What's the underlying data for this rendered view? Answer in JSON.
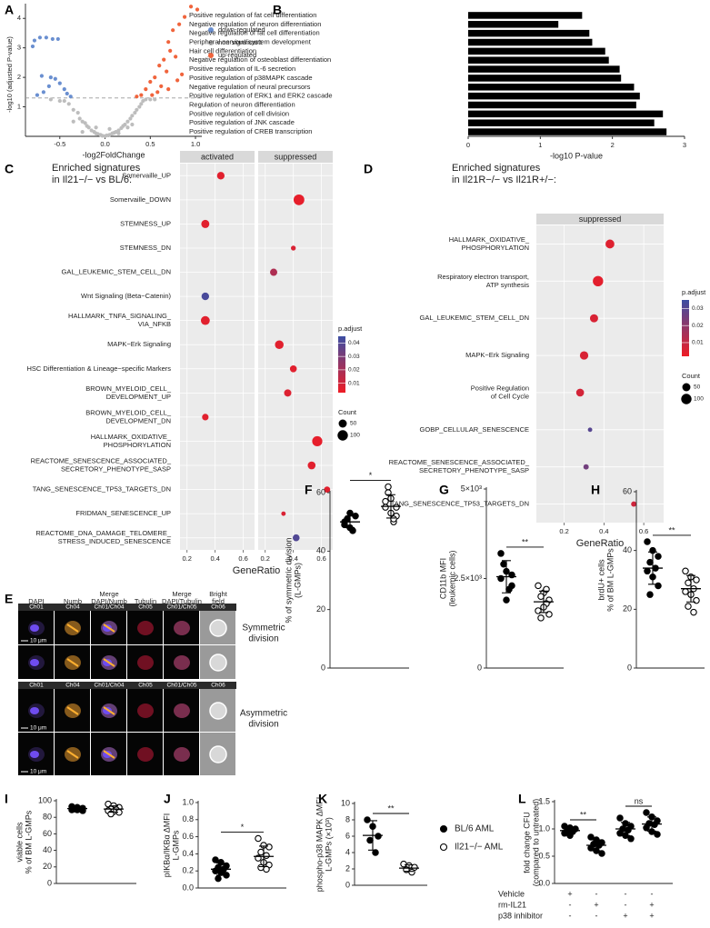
{
  "panel_e": {
    "label": "E",
    "headers": [
      [
        "DAPI"
      ],
      [
        "Numb"
      ],
      [
        "Merge",
        "DAPI/Numb"
      ],
      [
        "Tubulin"
      ],
      [
        "Merge",
        "DAPI/Tubulin"
      ],
      [
        "Bright",
        "field"
      ]
    ],
    "channels_top": [
      "Ch01",
      "Ch04",
      "Ch01/Ch04",
      "Ch05",
      "Ch01/Ch05",
      "Ch06"
    ],
    "channels_bottom": [
      "Ch01",
      "Ch04",
      "Ch01/Ch04",
      "Ch05",
      "Ch01/Ch05",
      "Ch06"
    ],
    "row_labels": [
      [
        "Symmetric",
        "division"
      ],
      [
        "Asymmetric",
        "division"
      ]
    ],
    "scale_bar": "10 μm"
  },
  "chart_data": [
    {
      "type": "scatter",
      "label": "A",
      "xlabel": "-log2FoldChange",
      "ylabel": "-log10 (adjusted P-value)",
      "xlim": [
        -0.88,
        1.07
      ],
      "ylim": [
        0,
        4.5
      ],
      "xticks": [
        -0.5,
        {
          "value": 0,
          "label": "0.0"
        },
        0.5,
        {
          "value": 1,
          "label": "1.0"
        }
      ],
      "yticks": [
        1,
        2,
        3,
        4
      ],
      "hline": 1.3,
      "series": [
        {
          "name": "down-regulated",
          "color": "#6a8fd0",
          "x": [
            -0.78,
            -0.72,
            -0.65,
            -0.58,
            -0.52,
            -0.8,
            -0.7,
            -0.6,
            -0.55,
            -0.5,
            -0.45,
            -0.62,
            -0.68,
            -0.42,
            -0.75,
            -0.38
          ],
          "values": [
            3.25,
            3.35,
            3.35,
            3.3,
            3.3,
            3.05,
            2.05,
            2.0,
            1.95,
            1.8,
            1.6,
            1.7,
            1.5,
            1.45,
            1.4,
            1.35
          ]
        },
        {
          "name": "non significant",
          "color": "#bdbdbd",
          "x": [
            -0.45,
            -0.4,
            -0.35,
            -0.3,
            -0.28,
            -0.25,
            -0.22,
            -0.2,
            -0.18,
            -0.15,
            -0.12,
            -0.1,
            -0.08,
            -0.05,
            -0.03,
            0,
            0.02,
            0.05,
            0.08,
            0.1,
            0.12,
            0.15,
            0.18,
            0.2,
            0.22,
            0.25,
            0.28,
            0.3,
            0.33,
            0.35,
            0.38,
            0.4,
            0.42,
            0.45,
            -0.6,
            -0.5,
            0.5,
            0.55,
            0.3,
            -0.35,
            0.15,
            -0.1,
            0.05,
            0.25,
            -0.25
          ],
          "values": [
            1.2,
            1.1,
            0.9,
            0.8,
            0.6,
            0.5,
            0.45,
            0.35,
            0.3,
            0.2,
            0.15,
            0.1,
            0.08,
            0.05,
            0.02,
            0.01,
            0.03,
            0.05,
            0.1,
            0.12,
            0.15,
            0.2,
            0.28,
            0.35,
            0.4,
            0.5,
            0.6,
            0.7,
            0.8,
            0.9,
            1.0,
            1.1,
            1.2,
            1.25,
            1.25,
            1.2,
            1.25,
            1.25,
            0.4,
            0.5,
            0.1,
            0.3,
            0.25,
            0.3,
            0.15
          ]
        },
        {
          "name": "up-regulated",
          "color": "#f0643c",
          "x": [
            0.95,
            1.02,
            0.88,
            0.82,
            0.75,
            0.7,
            0.72,
            0.78,
            0.65,
            0.6,
            0.68,
            0.55,
            0.5,
            0.62,
            0.45,
            0.58,
            0.4,
            0.7,
            0.8,
            0.85,
            0.52,
            0.35
          ],
          "values": [
            4.4,
            4.3,
            4.05,
            3.8,
            3.6,
            3.2,
            2.9,
            2.7,
            2.6,
            2.4,
            2.2,
            2.0,
            1.85,
            1.7,
            1.6,
            1.5,
            1.4,
            1.6,
            1.9,
            2.1,
            1.4,
            1.35
          ]
        }
      ]
    },
    {
      "type": "barh",
      "label": "B",
      "xlabel": "-log10 P-value",
      "color": "#000000",
      "xlim": [
        0,
        3
      ],
      "xticks": [
        0,
        1,
        2,
        3
      ],
      "categories": [
        "Positive regulation of fat cell differentiation",
        "Negative regulation of neuron differentiation",
        "Negative regulation of fat cell differentiation",
        "Peripheral nervous system development",
        "Hair cell differentiation",
        "Negative regulation of osteoblast differentiation",
        "Positive regulation of IL-6 secretion",
        "Positive regulation of p38MAPK cascade",
        "Negative regulation of neural precursors",
        "Positive regulation of ERK1 and ERK2 cascade",
        "Regulation of neuron differentiation",
        "Positive regulation of cell division",
        "Positive regulation of JNK cascade",
        "Positive regulation of CREB transcription"
      ],
      "values": [
        1.58,
        1.25,
        1.68,
        1.72,
        1.9,
        1.95,
        2.1,
        2.12,
        2.3,
        2.38,
        2.33,
        2.7,
        2.58,
        2.75
      ]
    },
    {
      "type": "dotplot",
      "label": "C",
      "title": [
        "Enriched signatures",
        "in Il21−/− vs BL/6:"
      ],
      "facets": [
        "activated",
        "suppressed"
      ],
      "categories": [
        [
          "Somervaille_UP"
        ],
        [
          "Somervaille_DOWN"
        ],
        [
          "STEMNESS_UP"
        ],
        [
          "STEMNESS_DN"
        ],
        [
          "GAL_LEUKEMIC_STEM_CELL_DN"
        ],
        [
          "Wnt Signaling (Beta−Catenin)"
        ],
        [
          "HALLMARK_TNFA_SIGNALING_",
          "VIA_NFKB"
        ],
        [
          "MAPK−Erk Signaling"
        ],
        [
          "HSC Differentiation & Lineage−specific Markers"
        ],
        [
          "BROWN_MYELOID_CELL_",
          "DEVELOPMENT_UP"
        ],
        [
          "BROWN_MYELOID_CELL_",
          "DEVELOPMENT_DN"
        ],
        [
          "HALLMARK_OXIDATIVE_",
          "PHOSPHORYLATION"
        ],
        [
          "REACTOME_SENESCENCE_ASSOCIATED_",
          "SECRETORY_PHENOTYPE_SASP"
        ],
        [
          "TANG_SENESCENCE_TP53_TARGETS_DN"
        ],
        [
          "FRIDMAN_SENESCENCE_UP"
        ],
        [
          "REACTOME_DNA_DAMAGE_TELOMERE_",
          "STRESS_INDUCED_SENESCENCE"
        ]
      ],
      "facet": [
        0,
        1,
        0,
        1,
        1,
        0,
        0,
        1,
        1,
        1,
        0,
        1,
        1,
        1,
        1,
        1
      ],
      "values": [
        0.44,
        0.44,
        0.33,
        0.4,
        0.26,
        0.33,
        0.33,
        0.3,
        0.4,
        0.36,
        0.33,
        0.57,
        0.53,
        0.64,
        0.33,
        0.42
      ],
      "p_adjust": [
        0.006,
        0.005,
        0.006,
        0.008,
        0.018,
        0.042,
        0.006,
        0.006,
        0.006,
        0.007,
        0.006,
        0.005,
        0.006,
        0.006,
        0.008,
        0.04
      ],
      "count": [
        40,
        110,
        50,
        8,
        35,
        40,
        65,
        60,
        30,
        35,
        25,
        95,
        45,
        20,
        5,
        30
      ],
      "xlim": [
        0.15,
        0.68
      ],
      "xticks": [
        0.2,
        0.4,
        0.6
      ],
      "xlabel": "GeneRatio",
      "color_title": "p.adjust",
      "color_lim": [
        0.003,
        0.045
      ],
      "color_ticks": [
        0.01,
        0.02,
        0.03,
        0.04
      ],
      "color_low": "#ee1c25",
      "color_high": "#3c4ea3",
      "size_title": "Count",
      "size_ticks": [
        50,
        100
      ]
    },
    {
      "type": "dotplot",
      "label": "D",
      "title": [
        "Enriched signatures",
        "in Il21R−/− vs Il21R+/−:"
      ],
      "facets": [
        "suppressed"
      ],
      "categories": [
        [
          "HALLMARK_OXIDATIVE_",
          "PHOSPHORYLATION"
        ],
        [
          "Respiratory electron transport,",
          "ATP synthesis"
        ],
        [
          "GAL_LEUKEMIC_STEM_CELL_DN"
        ],
        [
          "MAPK−Erk Signaling"
        ],
        [
          "Positive Regulation",
          "of Cell Cycle"
        ],
        [
          "GOBP_CELLULAR_SENESCENCE"
        ],
        [
          "REACTOME_SENESCENCE_ASSOCIATED_",
          "SECRETORY_PHENOTYPE_SASP"
        ],
        [
          "TANG_SENESCENCE_TP53_TARGETS_DN"
        ]
      ],
      "facet": [
        0,
        0,
        0,
        0,
        0,
        0,
        0,
        0
      ],
      "values": [
        0.43,
        0.37,
        0.35,
        0.3,
        0.28,
        0.33,
        0.31,
        0.55
      ],
      "p_adjust": [
        0.005,
        0.004,
        0.006,
        0.006,
        0.007,
        0.03,
        0.025,
        0.008
      ],
      "count": [
        65,
        100,
        50,
        55,
        45,
        5,
        12,
        12
      ],
      "xlim": [
        0.06,
        0.7
      ],
      "xticks": [
        0.2,
        0.4,
        0.6
      ],
      "xlabel": "GeneRatio",
      "color_title": "p.adjust",
      "color_lim": [
        0.002,
        0.035
      ],
      "color_ticks": [
        0.01,
        0.02,
        0.03
      ],
      "color_low": "#ee1c25",
      "color_high": "#3c4ea3",
      "size_title": "Count",
      "size_ticks": [
        50,
        100
      ]
    },
    {
      "type": "strip",
      "label": "F",
      "ylabel": [
        "% of symmetric division",
        "(L-GMPs)"
      ],
      "ylim": [
        0,
        60
      ],
      "yticks": [
        0,
        20,
        40,
        60
      ],
      "series": [
        {
          "fill": "filled",
          "values": [
            50,
            48,
            52,
            51,
            47,
            49,
            53
          ],
          "mean": 50,
          "sd": 2
        },
        {
          "fill": "open",
          "values": [
            55,
            58,
            52,
            60,
            50,
            57,
            53,
            55,
            62,
            51
          ],
          "mean": 55.3,
          "sd": 4
        }
      ],
      "significance": [
        {
          "groups": [
            0,
            1
          ],
          "label": "*"
        }
      ]
    },
    {
      "type": "strip",
      "label": "G",
      "ylabel": [
        "CD11b MFI",
        "(leukemic cells)"
      ],
      "ylim": [
        0,
        5000
      ],
      "yticks": [
        0,
        {
          "value": 2500,
          "label": "2.5×10³"
        },
        {
          "value": 5000,
          "label": "5×10³"
        }
      ],
      "series": [
        {
          "fill": "filled",
          "values": [
            3200,
            2700,
            2600,
            2900,
            2200,
            2500,
            1900,
            2300
          ],
          "mean": 2550,
          "sd": 450
        },
        {
          "fill": "open",
          "values": [
            2300,
            2100,
            1900,
            2000,
            1800,
            1600,
            1700,
            1500,
            1400,
            2200
          ],
          "mean": 1850,
          "sd": 300
        }
      ],
      "significance": [
        {
          "groups": [
            0,
            1
          ],
          "label": "**"
        }
      ]
    },
    {
      "type": "strip",
      "label": "H",
      "ylabel": [
        "brdU+ cells",
        "% of BM L-GMPs"
      ],
      "ylim": [
        0,
        60
      ],
      "yticks": [
        0,
        20,
        40,
        60
      ],
      "series": [
        {
          "fill": "filled",
          "values": [
            43,
            40,
            38,
            36,
            34,
            33,
            31,
            28,
            25
          ],
          "mean": 34,
          "sd": 5.5
        },
        {
          "fill": "open",
          "values": [
            33,
            31,
            30,
            29,
            27,
            26,
            25,
            23,
            21,
            19
          ],
          "mean": 27,
          "sd": 4.5
        }
      ],
      "significance": [
        {
          "groups": [
            0,
            1
          ],
          "label": "**"
        }
      ]
    },
    {
      "type": "strip",
      "label": "I",
      "ylabel": [
        "viable cells",
        "% of BM L-GMPs"
      ],
      "ylim": [
        0,
        100
      ],
      "yticks": [
        0,
        20,
        40,
        60,
        80,
        100
      ],
      "series": [
        {
          "fill": "filled",
          "values": [
            93,
            92,
            91,
            90,
            90,
            89,
            89,
            88,
            91
          ],
          "mean": 90.5,
          "sd": 1.6
        },
        {
          "fill": "open",
          "values": [
            96,
            94,
            92,
            90,
            89,
            88,
            87,
            86,
            84
          ],
          "mean": 90,
          "sd": 3.8
        }
      ]
    },
    {
      "type": "strip",
      "label": "J",
      "ylabel": [
        "pIKBα/IKBα ΔMFI",
        "L-GMPs"
      ],
      "ylim": [
        0,
        1
      ],
      "yticks": [
        {
          "value": 0,
          "label": "0.0"
        },
        0.2,
        0.4,
        0.6,
        0.8,
        {
          "value": 1,
          "label": "1.0"
        }
      ],
      "series": [
        {
          "fill": "filled",
          "values": [
            0.33,
            0.3,
            0.26,
            0.24,
            0.22,
            0.2,
            0.18,
            0.15,
            0.11
          ],
          "mean": 0.22,
          "sd": 0.07
        },
        {
          "fill": "open",
          "values": [
            0.58,
            0.5,
            0.48,
            0.42,
            0.38,
            0.35,
            0.3,
            0.27,
            0.24,
            0.22
          ],
          "mean": 0.37,
          "sd": 0.12
        }
      ],
      "significance": [
        {
          "groups": [
            0,
            1
          ],
          "label": "*"
        }
      ]
    },
    {
      "type": "strip",
      "label": "K",
      "ylabel": [
        "phospho-p38 MAPK ΔMFI",
        "L-GMPs (×10³)"
      ],
      "ylim": [
        0,
        10
      ],
      "yticks": [
        0,
        2,
        4,
        6,
        8,
        10
      ],
      "series": [
        {
          "name": "BL/6 AML",
          "fill": "filled",
          "values": [
            8.0,
            7.2,
            6.0,
            5.5,
            4.0
          ],
          "mean": 6.1,
          "sd": 1.8
        },
        {
          "name": "Il21−/− AML",
          "fill": "open",
          "values": [
            2.6,
            2.4,
            2.2,
            1.9,
            1.6
          ],
          "mean": 2.1,
          "sd": 0.4
        }
      ],
      "significance": [
        {
          "groups": [
            0,
            1
          ],
          "label": "**"
        }
      ]
    },
    {
      "type": "strip",
      "label": "L",
      "ylabel": [
        "fold change CFU",
        "(compared to untreated)"
      ],
      "ylim": [
        0,
        1.5
      ],
      "yticks": [
        {
          "value": 0,
          "label": "0.0"
        },
        0.5,
        {
          "value": 1,
          "label": "1.0"
        },
        1.5
      ],
      "series": [
        {
          "fill": "filled",
          "values": [
            1.05,
            1.02,
            1.0,
            0.98,
            0.95,
            0.92,
            0.88
          ],
          "mean": 0.97,
          "sd": 0.06
        },
        {
          "fill": "filled",
          "values": [
            0.85,
            0.8,
            0.75,
            0.72,
            0.7,
            0.65,
            0.6,
            0.55
          ],
          "mean": 0.7,
          "sd": 0.1
        },
        {
          "fill": "filled",
          "values": [
            1.2,
            1.1,
            1.05,
            1.0,
            0.98,
            0.92,
            0.88,
            0.82
          ],
          "mean": 1.0,
          "sd": 0.12
        },
        {
          "fill": "filled",
          "values": [
            1.3,
            1.22,
            1.15,
            1.1,
            1.08,
            1.02,
            0.95,
            0.9
          ],
          "mean": 1.09,
          "sd": 0.13
        }
      ],
      "significance": [
        {
          "groups": [
            0,
            1
          ],
          "label": "**"
        },
        {
          "groups": [
            2,
            3
          ],
          "label": "ns"
        }
      ],
      "conditions": [
        {
          "name": "Vehicle",
          "marks": [
            "+",
            "-",
            "-",
            "-"
          ]
        },
        {
          "name": "rm-IL21",
          "marks": [
            "-",
            "+",
            "-",
            "+"
          ]
        },
        {
          "name": "p38 inhibitor",
          "marks": [
            "-",
            "-",
            "+",
            "+"
          ]
        }
      ]
    }
  ]
}
